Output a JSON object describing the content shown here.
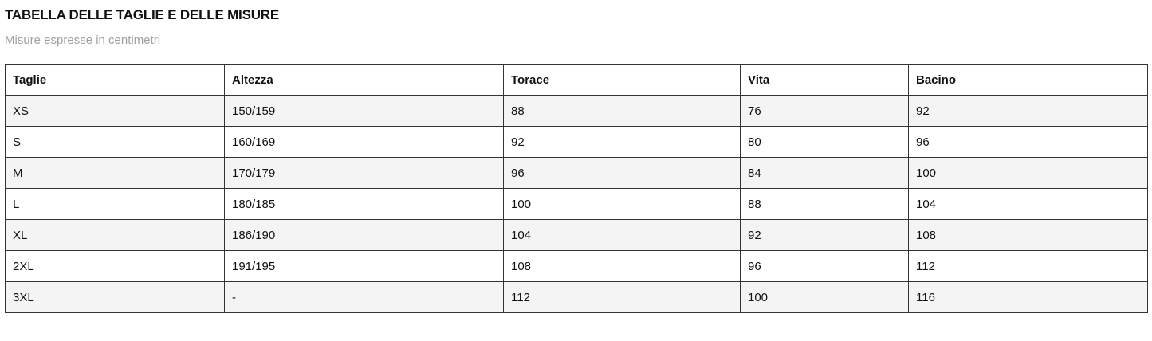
{
  "title": "TABELLA DELLE TAGLIE E DELLE MISURE",
  "subtitle": "Misure espresse in centimetri",
  "table": {
    "headers": [
      "Taglie",
      "Altezza",
      "Torace",
      "Vita",
      "Bacino"
    ],
    "rows": [
      [
        "XS",
        "150/159",
        "88",
        "76",
        "92"
      ],
      [
        "S",
        "160/169",
        "92",
        "80",
        "96"
      ],
      [
        "M",
        "170/179",
        "96",
        "84",
        "100"
      ],
      [
        "L",
        "180/185",
        "100",
        "88",
        "104"
      ],
      [
        "XL",
        "186/190",
        "104",
        "92",
        "108"
      ],
      [
        "2XL",
        "191/195",
        "108",
        "96",
        "112"
      ],
      [
        "3XL",
        "-",
        "112",
        "100",
        "116"
      ]
    ]
  }
}
